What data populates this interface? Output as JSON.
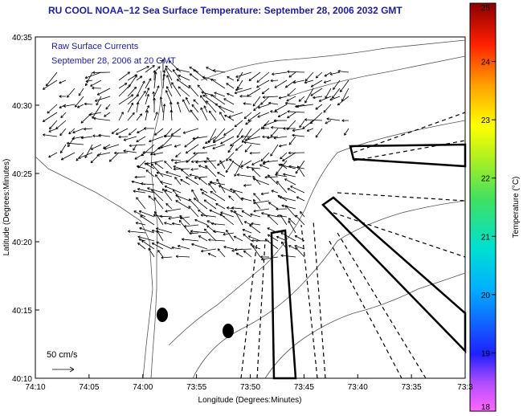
{
  "title": "RU COOL  NOAA−12  Sea Surface Temperature:  September 28, 2006 2032 GMT",
  "overlay": {
    "line1": "Raw Surface Currents",
    "line2": "September 28, 2006 at 20 GMT",
    "scale_label": "50 cm/s"
  },
  "chart_data": {
    "type": "map",
    "title": "RU COOL  NOAA−12  Sea Surface Temperature:  September 28, 2006 2032 GMT",
    "xlabel": "Longitude (Degrees:Minutes)",
    "ylabel": "Latitude (Degrees:Minutes)",
    "x_ticks": [
      "74:10",
      "74:05",
      "74:00",
      "73:55",
      "73:50",
      "73:45",
      "73:40",
      "73:35",
      "73:3"
    ],
    "y_ticks": [
      "40:10",
      "40:15",
      "40:20",
      "40:25",
      "40:30",
      "40:35"
    ],
    "colorbar": {
      "label": "Temperature (°C)",
      "ticks": [
        "18",
        "19",
        "20",
        "21",
        "22",
        "23",
        "24",
        "25"
      ],
      "range": [
        18,
        25
      ]
    },
    "current_vector_scale": "50 cm/s",
    "colors": {
      "text": "#2020a0",
      "land_contour": "#555555"
    }
  }
}
